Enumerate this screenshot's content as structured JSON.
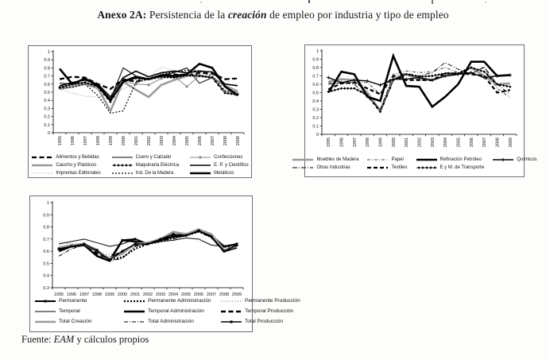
{
  "page": {
    "title": {
      "prefix": "Anexo 2A:",
      "middle": " Persistencia de la ",
      "emphasis": "creación",
      "suffix": " de empleo por industria y tipo de empleo"
    },
    "source": {
      "label": "Fuente: ",
      "emphasis": "EAM",
      "suffix": " y cálculos propios"
    }
  },
  "chart_data": [
    {
      "type": "line",
      "title": "",
      "xlabel": "",
      "ylabel": "",
      "x": [
        "1995",
        "1996",
        "1997",
        "1998",
        "1999",
        "2000",
        "2001",
        "2002",
        "2003",
        "2004",
        "2005",
        "2006",
        "2007",
        "2008",
        "2009"
      ],
      "ylim": [
        0,
        1
      ],
      "yticks": [
        "1",
        "0.9",
        "0.8",
        "0.7",
        "0.6",
        "0.5",
        "0.4",
        "0.3",
        "0.2",
        "0.1",
        "0"
      ],
      "xtick_rotation": 90,
      "grid": false,
      "legend_position": "bottom",
      "series": [
        {
          "name": "Alimentos y Bebidas",
          "style": {
            "color": "#000000",
            "width": 2.3,
            "dash": "6,3.5"
          },
          "values": [
            0.66,
            0.69,
            0.68,
            0.6,
            0.54,
            0.66,
            0.63,
            0.67,
            0.7,
            0.72,
            0.7,
            0.74,
            0.73,
            0.66,
            0.67
          ]
        },
        {
          "name": "Cuero y Calzado",
          "style": {
            "color": "#000000",
            "width": 1
          },
          "values": [
            0.61,
            0.6,
            0.67,
            0.58,
            0.41,
            0.8,
            0.7,
            0.66,
            0.71,
            0.74,
            0.8,
            0.61,
            0.68,
            0.58,
            0.47
          ]
        },
        {
          "name": "Confecciones",
          "style": {
            "color": "#8a8a8a",
            "width": 1,
            "marker": "square"
          },
          "values": [
            0.55,
            0.58,
            0.62,
            0.58,
            0.42,
            0.64,
            0.6,
            0.59,
            0.67,
            0.7,
            0.57,
            0.7,
            0.68,
            0.51,
            0.48
          ]
        },
        {
          "name": "Caucho y Plásticos",
          "style": {
            "color": "#9b9b9b",
            "width": 2.6
          },
          "values": [
            0.54,
            0.57,
            0.6,
            0.55,
            0.27,
            0.63,
            0.53,
            0.44,
            0.59,
            0.65,
            0.7,
            0.71,
            0.68,
            0.58,
            0.51
          ]
        },
        {
          "name": "Maquinaria Eléctrica",
          "style": {
            "color": "#000000",
            "width": 0.8,
            "marker": "diamond",
            "dense": true
          },
          "values": [
            0.56,
            0.6,
            0.62,
            0.57,
            0.38,
            0.64,
            0.67,
            0.66,
            0.69,
            0.68,
            0.71,
            0.7,
            0.68,
            0.49,
            0.47
          ]
        },
        {
          "name": "E. P. y Científico",
          "style": {
            "color": "#000000",
            "width": 1.6
          },
          "values": [
            0.58,
            0.62,
            0.65,
            0.6,
            0.44,
            0.68,
            0.76,
            0.69,
            0.74,
            0.76,
            0.74,
            0.76,
            0.75,
            0.6,
            0.58
          ]
        },
        {
          "name": "Imprentas Editoriales",
          "style": {
            "color": "#6e6e6e",
            "width": 0.8,
            "dash": "1,2.5"
          },
          "values": [
            0.54,
            0.49,
            0.45,
            0.44,
            0.48,
            0.54,
            0.61,
            0.68,
            0.81,
            0.77,
            0.78,
            0.77,
            0.75,
            0.67,
            0.66
          ]
        },
        {
          "name": "Ind. De la Madera",
          "style": {
            "color": "#000000",
            "width": 1.2,
            "dash": "2,2"
          },
          "values": [
            0.55,
            0.56,
            0.6,
            0.46,
            0.24,
            0.27,
            0.62,
            0.66,
            0.72,
            0.75,
            0.77,
            0.76,
            0.7,
            0.52,
            0.5
          ]
        },
        {
          "name": "Metálicos",
          "style": {
            "color": "#000000",
            "width": 2.6
          },
          "values": [
            0.79,
            0.6,
            0.67,
            0.58,
            0.4,
            0.63,
            0.69,
            0.66,
            0.71,
            0.7,
            0.72,
            0.85,
            0.8,
            0.57,
            0.46
          ]
        }
      ]
    },
    {
      "type": "line",
      "title": "",
      "xlabel": "",
      "ylabel": "",
      "x": [
        "1995",
        "1996",
        "1997",
        "1998",
        "1999",
        "2000",
        "2001",
        "2002",
        "2003",
        "2004",
        "2005",
        "2006",
        "2007",
        "2008",
        "2009"
      ],
      "ylim": [
        0,
        1
      ],
      "yticks": [
        "1",
        "0.9",
        "0.8",
        "0.7",
        "0.6",
        "0.5",
        "0.4",
        "0.3",
        "0.2",
        "0.1",
        "0"
      ],
      "xtick_rotation": 90,
      "grid": false,
      "legend_position": "bottom",
      "series": [
        {
          "name": "Muebles de Madera",
          "style": {
            "color": "#9b9b9b",
            "width": 2.6
          },
          "values": [
            0.63,
            0.66,
            0.65,
            0.5,
            0.28,
            0.66,
            0.72,
            0.66,
            0.65,
            0.7,
            0.72,
            0.8,
            0.7,
            0.6,
            0.61
          ]
        },
        {
          "name": "Papel",
          "style": {
            "color": "#4a4a4a",
            "width": 1,
            "dash": "4,2,1,2"
          },
          "values": [
            0.62,
            0.61,
            0.63,
            0.62,
            0.48,
            0.72,
            0.76,
            0.74,
            0.75,
            0.8,
            0.74,
            0.73,
            0.8,
            0.55,
            0.44
          ]
        },
        {
          "name": "Refinación Petróleo",
          "style": {
            "color": "#000000",
            "width": 2.6
          },
          "values": [
            0.5,
            0.75,
            0.72,
            0.45,
            0.4,
            0.94,
            0.58,
            0.57,
            0.33,
            0.45,
            0.6,
            0.87,
            0.87,
            0.7,
            0.71
          ]
        },
        {
          "name": "Químicos",
          "style": {
            "color": "#000000",
            "width": 1.4,
            "marker": "plus"
          },
          "values": [
            0.68,
            0.62,
            0.65,
            0.64,
            0.59,
            0.66,
            0.66,
            0.68,
            0.65,
            0.7,
            0.72,
            0.74,
            0.68,
            0.7,
            0.71
          ]
        },
        {
          "name": "Otras Industrias",
          "style": {
            "color": "#000000",
            "width": 0.9,
            "dash": "6,2,1,2"
          },
          "values": [
            0.6,
            0.62,
            0.6,
            0.45,
            0.3,
            0.7,
            0.73,
            0.7,
            0.74,
            0.86,
            0.78,
            0.72,
            0.81,
            0.6,
            0.48
          ]
        },
        {
          "name": "Textiles",
          "style": {
            "color": "#000000",
            "width": 2.2,
            "dash": "5,3"
          },
          "values": [
            0.54,
            0.61,
            0.62,
            0.55,
            0.48,
            0.7,
            0.65,
            0.65,
            0.65,
            0.73,
            0.73,
            0.72,
            0.7,
            0.5,
            0.53
          ]
        },
        {
          "name": "E y M. de Transporte",
          "style": {
            "color": "#000000",
            "width": 0.8,
            "marker": "diamond",
            "dense": true
          },
          "values": [
            0.51,
            0.55,
            0.55,
            0.47,
            0.27,
            0.65,
            0.72,
            0.69,
            0.7,
            0.73,
            0.73,
            0.8,
            0.75,
            0.6,
            0.57
          ]
        }
      ]
    },
    {
      "type": "line",
      "title": "",
      "xlabel": "",
      "ylabel": "",
      "x": [
        "1995",
        "1996",
        "1997",
        "1998",
        "1999",
        "2000",
        "2001",
        "2002",
        "2003",
        "2004",
        "2005",
        "2006",
        "2007",
        "2008",
        "2009"
      ],
      "ylim": [
        0.3,
        1
      ],
      "yticks": [
        "1",
        "0.9",
        "0.8",
        "0.7",
        "0.6",
        "0.5",
        "0.4",
        "0.3"
      ],
      "xtick_rotation": 0,
      "grid": false,
      "legend_position": "bottom",
      "series": [
        {
          "name": "Permanente",
          "style": {
            "color": "#000000",
            "width": 2,
            "marker": "square"
          },
          "values": [
            0.62,
            0.64,
            0.66,
            0.61,
            0.53,
            0.69,
            0.7,
            0.66,
            0.69,
            0.72,
            0.74,
            0.77,
            0.73,
            0.64,
            0.66
          ]
        },
        {
          "name": "Permanente Administración",
          "style": {
            "color": "#000000",
            "width": 2.2,
            "dash": "2,2"
          },
          "values": [
            0.61,
            0.65,
            0.66,
            0.6,
            0.53,
            0.55,
            0.62,
            0.66,
            0.68,
            0.71,
            0.73,
            0.76,
            0.72,
            0.64,
            0.63
          ]
        },
        {
          "name": "Permanente Producción",
          "style": {
            "color": "#5a5a5a",
            "width": 0.9,
            "dash": "1,2.5"
          },
          "values": [
            0.68,
            0.66,
            0.66,
            0.59,
            0.57,
            0.6,
            0.64,
            0.66,
            0.69,
            0.7,
            0.74,
            0.77,
            0.73,
            0.63,
            0.64
          ]
        },
        {
          "name": "Temporal",
          "style": {
            "color": "#000000",
            "width": 1
          },
          "values": [
            0.66,
            0.68,
            0.7,
            0.67,
            0.64,
            0.66,
            0.7,
            0.66,
            0.68,
            0.69,
            0.71,
            0.7,
            0.65,
            0.64,
            0.65
          ]
        },
        {
          "name": "Temporal Administración",
          "style": {
            "color": "#000000",
            "width": 2.4
          },
          "values": [
            0.6,
            0.64,
            0.65,
            0.56,
            0.52,
            0.69,
            0.68,
            0.66,
            0.7,
            0.72,
            0.73,
            0.77,
            0.72,
            0.6,
            0.63
          ]
        },
        {
          "name": "Temporal Producción",
          "style": {
            "color": "#000000",
            "width": 2.4,
            "dash": "6,3.5"
          },
          "values": [
            0.61,
            0.64,
            0.65,
            0.58,
            0.54,
            0.6,
            0.65,
            0.67,
            0.7,
            0.73,
            0.74,
            0.77,
            0.73,
            0.61,
            0.64
          ]
        },
        {
          "name": "Total Creación",
          "style": {
            "color": "#9b9b9b",
            "width": 2.6
          },
          "values": [
            0.63,
            0.65,
            0.66,
            0.6,
            0.54,
            0.58,
            0.66,
            0.67,
            0.7,
            0.76,
            0.74,
            0.78,
            0.74,
            0.61,
            0.64
          ]
        },
        {
          "name": "Total Administración",
          "style": {
            "color": "#000000",
            "width": 1,
            "dash": "5,2,1,2"
          },
          "values": [
            0.56,
            0.62,
            0.65,
            0.57,
            0.52,
            0.54,
            0.64,
            0.66,
            0.69,
            0.7,
            0.73,
            0.76,
            0.71,
            0.59,
            0.65
          ]
        },
        {
          "name": "Total Producción",
          "style": {
            "color": "#000000",
            "width": 1.4,
            "marker": "square"
          },
          "values": [
            0.62,
            0.64,
            0.66,
            0.6,
            0.53,
            0.6,
            0.66,
            0.66,
            0.7,
            0.74,
            0.73,
            0.77,
            0.72,
            0.6,
            0.65
          ]
        }
      ]
    }
  ]
}
